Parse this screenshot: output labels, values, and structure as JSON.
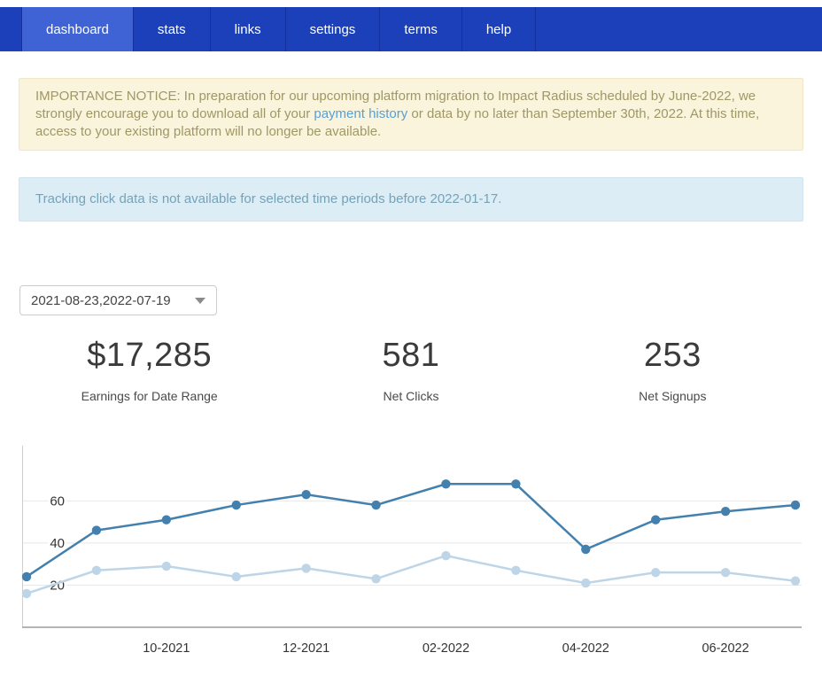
{
  "nav": {
    "tabs": [
      {
        "label": "dashboard",
        "active": true
      },
      {
        "label": "stats",
        "active": false
      },
      {
        "label": "links",
        "active": false
      },
      {
        "label": "settings",
        "active": false
      },
      {
        "label": "terms",
        "active": false
      },
      {
        "label": "help",
        "active": false
      }
    ]
  },
  "notice": {
    "prefix": "IMPORTANCE NOTICE: In preparation for our upcoming platform migration to Impact Radius scheduled by June-2022, we strongly encourage you to download all of your ",
    "link_text": "payment history",
    "suffix": " or data by no later than September 30th, 2022. At this time, access to your existing platform will no longer be available."
  },
  "tracking_notice": {
    "text": "Tracking click data is not available for selected time periods before 2022-01-17."
  },
  "date_range": {
    "value": "2021-08-23,2022-07-19",
    "caret_icon": "chevron-down"
  },
  "stats": [
    {
      "value": "$17,285",
      "label": "Earnings for Date Range"
    },
    {
      "value": "581",
      "label": "Net Clicks"
    },
    {
      "value": "253",
      "label": "Net Signups"
    }
  ],
  "chart_data": {
    "type": "line",
    "x": [
      "08-2021",
      "09-2021",
      "10-2021",
      "11-2021",
      "12-2021",
      "01-2022",
      "02-2022",
      "03-2022",
      "04-2022",
      "05-2022",
      "06-2022",
      "07-2022"
    ],
    "x_tick_labels": [
      "10-2021",
      "12-2021",
      "02-2022",
      "04-2022",
      "06-2022"
    ],
    "x_tick_indices": [
      2,
      4,
      6,
      8,
      10
    ],
    "series": [
      {
        "name": "clicks",
        "color": "#4380ae",
        "values": [
          24,
          46,
          51,
          58,
          63,
          58,
          68,
          68,
          37,
          51,
          55,
          58
        ]
      },
      {
        "name": "signups",
        "color": "#bdd5e7",
        "values": [
          16,
          27,
          29,
          24,
          28,
          23,
          34,
          27,
          21,
          26,
          26,
          22
        ]
      }
    ],
    "ylim": [
      0,
      82
    ],
    "yticks": [
      20,
      40,
      60
    ],
    "grid": true,
    "legend": "none",
    "title": ""
  }
}
